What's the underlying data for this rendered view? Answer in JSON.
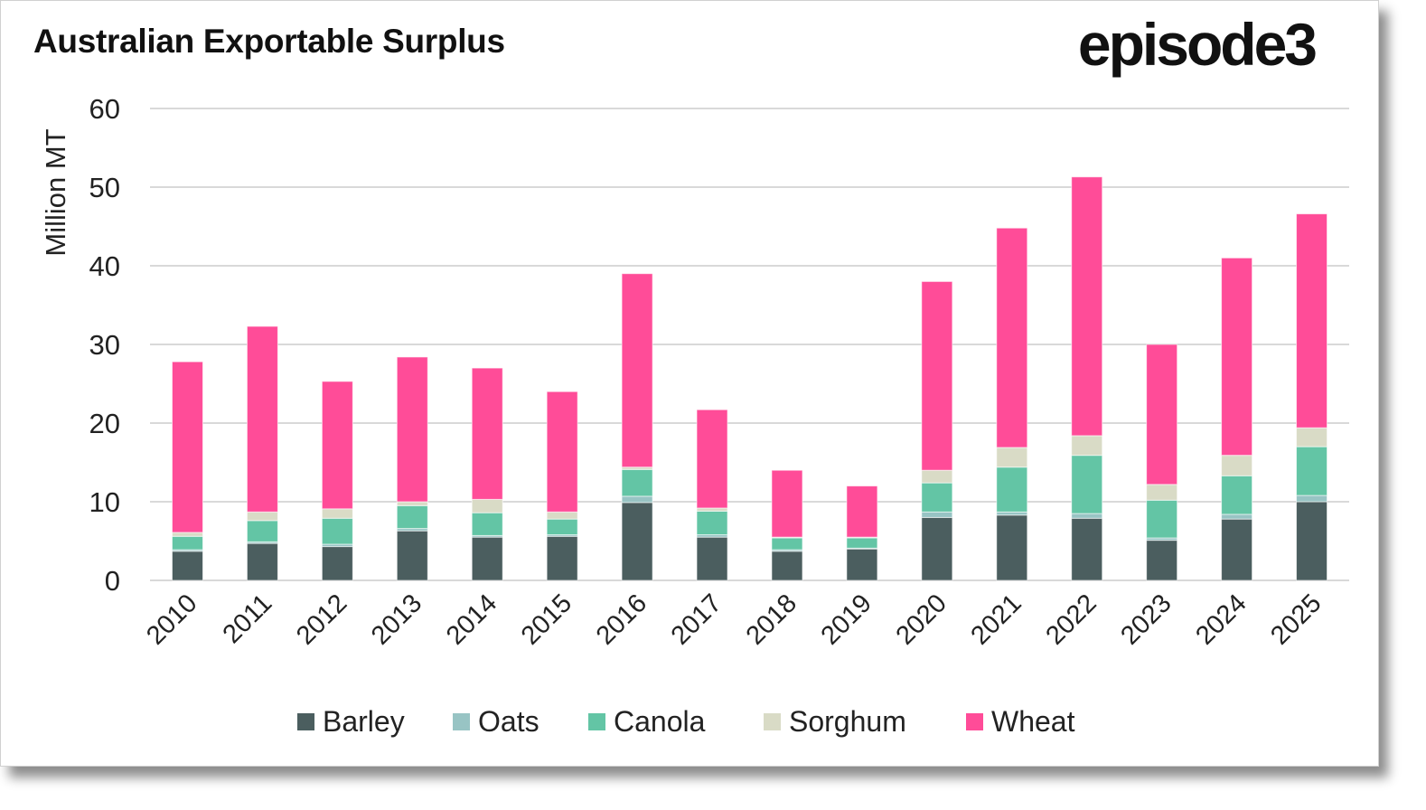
{
  "logo_text": "episode3",
  "chart_data": {
    "type": "bar",
    "stacked": true,
    "title": "Australian Exportable Surplus",
    "xlabel": "",
    "ylabel": "Million MT",
    "ylim": [
      0,
      60
    ],
    "yticks": [
      0,
      10,
      20,
      30,
      40,
      50,
      60
    ],
    "grid": true,
    "legend_position": "bottom",
    "categories": [
      "2010",
      "2011",
      "2012",
      "2013",
      "2014",
      "2015",
      "2016",
      "2017",
      "2018",
      "2019",
      "2020",
      "2021",
      "2022",
      "2023",
      "2024",
      "2025"
    ],
    "series": [
      {
        "name": "Barley",
        "color": "#4b5e5f",
        "values": [
          3.7,
          4.7,
          4.3,
          6.3,
          5.5,
          5.6,
          9.9,
          5.5,
          3.7,
          4.0,
          8.0,
          8.3,
          7.9,
          5.1,
          7.8,
          10.0
        ]
      },
      {
        "name": "Oats",
        "color": "#98c4c4",
        "values": [
          0.2,
          0.2,
          0.3,
          0.3,
          0.2,
          0.2,
          0.8,
          0.3,
          0.2,
          0.1,
          0.7,
          0.4,
          0.6,
          0.3,
          0.6,
          0.8
        ]
      },
      {
        "name": "Canola",
        "color": "#63c5a5",
        "values": [
          1.7,
          2.7,
          3.3,
          2.9,
          2.9,
          2.0,
          3.4,
          3.0,
          1.5,
          1.3,
          3.7,
          5.7,
          7.4,
          4.8,
          4.9,
          6.2
        ]
      },
      {
        "name": "Sorghum",
        "color": "#d9dbc6",
        "values": [
          0.5,
          1.1,
          1.2,
          0.5,
          1.7,
          0.9,
          0.3,
          0.4,
          0.1,
          0.1,
          1.6,
          2.5,
          2.5,
          2.0,
          2.6,
          2.4
        ]
      },
      {
        "name": "Wheat",
        "color": "#ff4c98",
        "values": [
          21.7,
          23.6,
          16.2,
          18.4,
          16.7,
          15.3,
          24.6,
          12.5,
          8.5,
          6.5,
          24.0,
          27.9,
          32.9,
          17.8,
          25.1,
          27.2
        ]
      }
    ]
  }
}
